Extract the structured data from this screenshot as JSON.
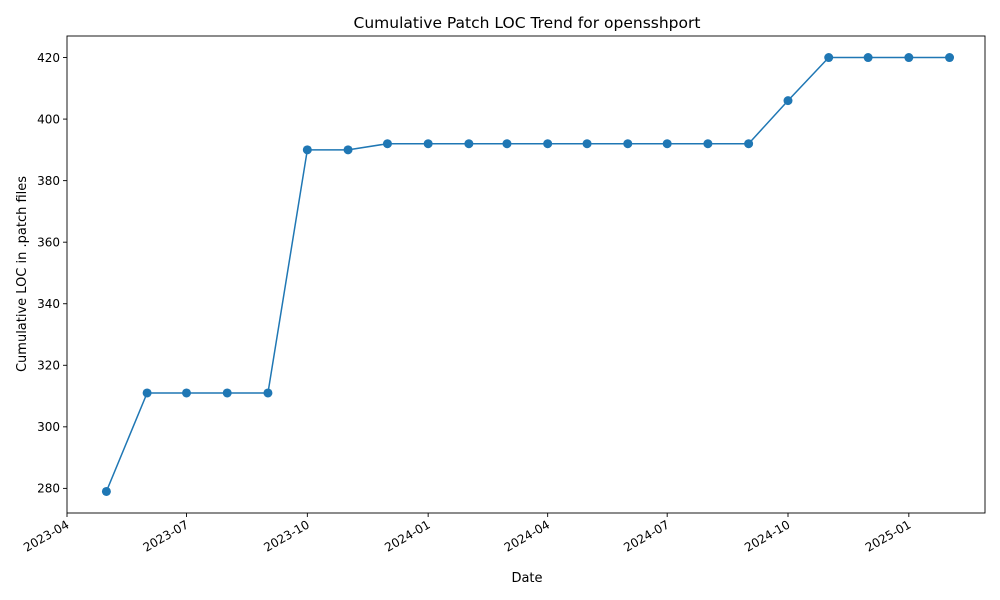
{
  "chart_data": {
    "type": "line",
    "title": "Cumulative Patch LOC Trend for opensshport",
    "xlabel": "Date",
    "ylabel": "Cumulative LOC in .patch files",
    "ylim": [
      272,
      427
    ],
    "y_ticks": [
      280,
      300,
      320,
      340,
      360,
      380,
      400,
      420
    ],
    "x_range": [
      "2023-04-01",
      "2025-02-28"
    ],
    "x_ticks": [
      "2023-04",
      "2023-07",
      "2023-10",
      "2024-01",
      "2024-04",
      "2024-07",
      "2024-10",
      "2025-01"
    ],
    "grid": false,
    "legend": "none",
    "line_color": "#1f77b4",
    "marker": "circle",
    "series": [
      {
        "x": [
          "2023-05-01",
          "2023-06-01",
          "2023-07-01",
          "2023-08-01",
          "2023-09-01",
          "2023-10-01",
          "2023-11-01",
          "2023-12-01",
          "2024-01-01",
          "2024-02-01",
          "2024-03-01",
          "2024-04-01",
          "2024-05-01",
          "2024-06-01",
          "2024-07-01",
          "2024-08-01",
          "2024-09-01",
          "2024-10-01",
          "2024-11-01",
          "2024-12-01",
          "2025-01-01",
          "2025-02-01"
        ],
        "values": [
          279,
          311,
          311,
          311,
          311,
          390,
          390,
          392,
          392,
          392,
          392,
          392,
          392,
          392,
          392,
          392,
          392,
          406,
          420,
          420,
          420,
          420
        ]
      }
    ]
  }
}
